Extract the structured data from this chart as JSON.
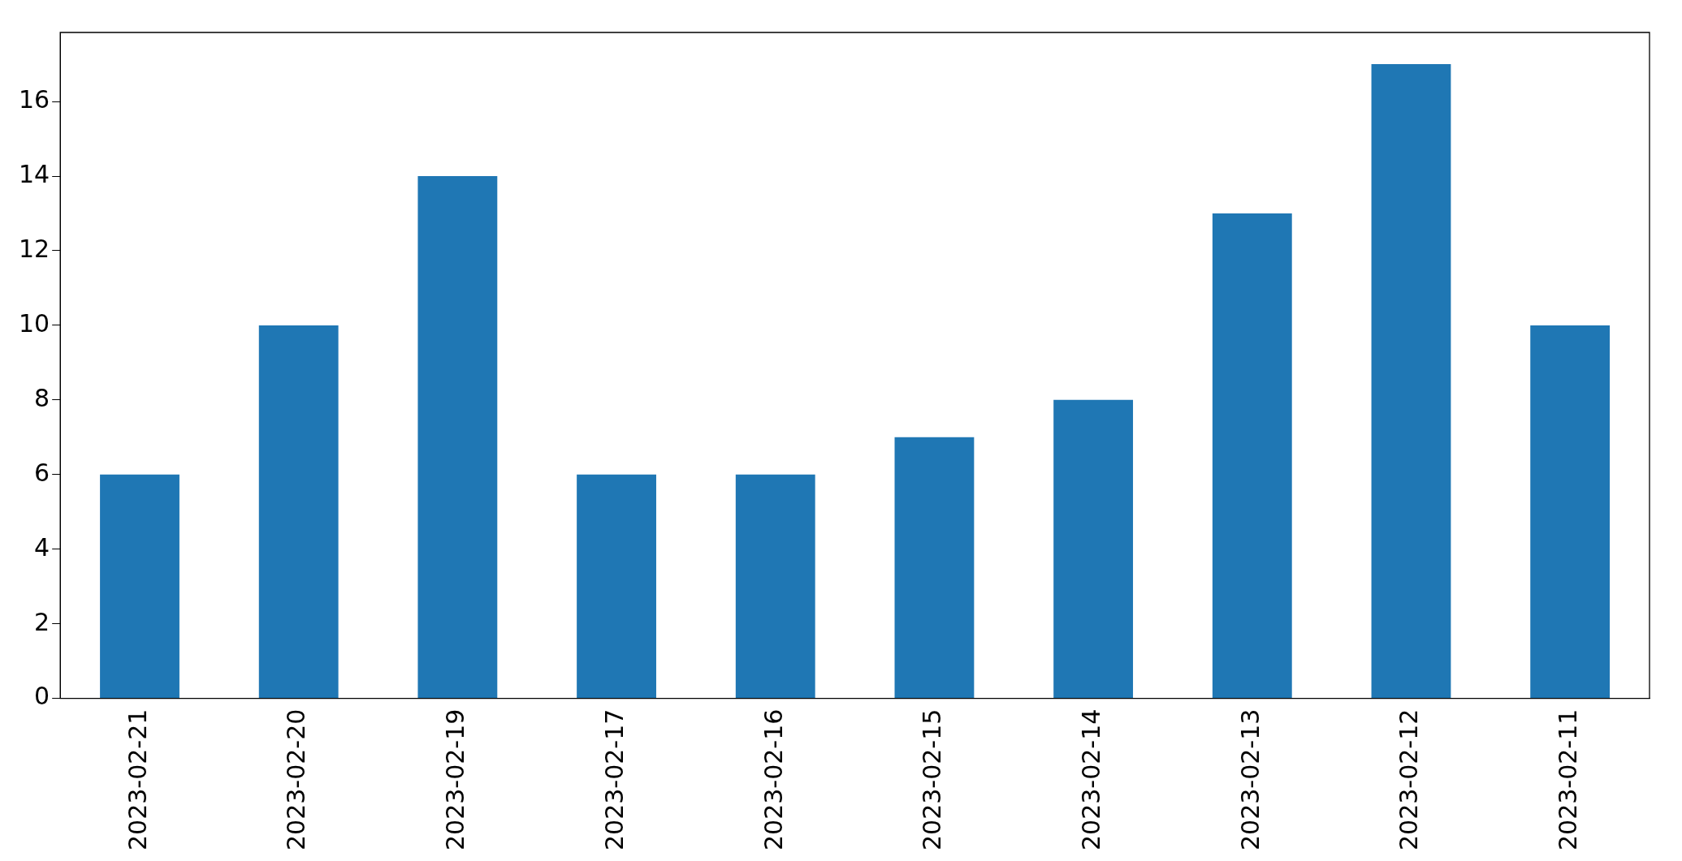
{
  "chart_data": {
    "type": "bar",
    "categories": [
      "2023-02-21",
      "2023-02-20",
      "2023-02-19",
      "2023-02-17",
      "2023-02-16",
      "2023-02-15",
      "2023-02-14",
      "2023-02-13",
      "2023-02-12",
      "2023-02-11"
    ],
    "values": [
      6,
      10,
      14,
      6,
      6,
      7,
      8,
      13,
      17,
      10
    ],
    "color": "#1f77b4",
    "ylim": [
      0,
      17.85
    ],
    "yticks": [
      0,
      2,
      4,
      6,
      8,
      10,
      12,
      14,
      16
    ],
    "grid": false,
    "legend": false
  }
}
